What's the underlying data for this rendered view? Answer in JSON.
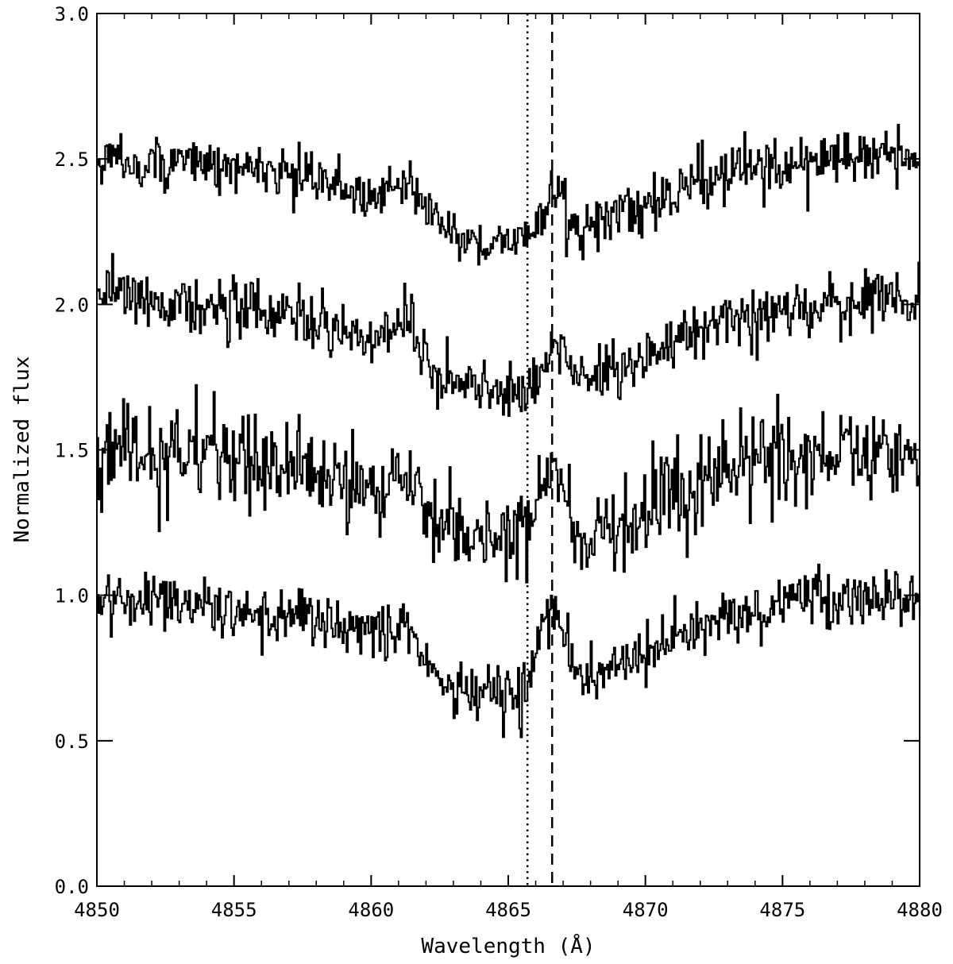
{
  "chart_data": {
    "type": "line",
    "title": "",
    "xlabel": "Wavelength (Å)",
    "ylabel": "Normalized flux",
    "xlim": [
      4850,
      4880
    ],
    "ylim": [
      0.0,
      3.0
    ],
    "x_ticks": [
      4850,
      4855,
      4860,
      4865,
      4870,
      4875,
      4880
    ],
    "x_tick_labels": [
      "4850",
      "4855",
      "4860",
      "4865",
      "4870",
      "4875",
      "4880"
    ],
    "y_ticks": [
      0.0,
      0.5,
      1.0,
      1.5,
      2.0,
      2.5,
      3.0
    ],
    "y_tick_labels": [
      "0.0",
      "0.5",
      "1.0",
      "1.5",
      "2.0",
      "2.5",
      "3.0"
    ],
    "grid": false,
    "legend": "none",
    "line_color": "#000000",
    "reference_lines": [
      {
        "style": "dotted",
        "x": 4865.7
      },
      {
        "style": "dashed",
        "x": 4866.6
      }
    ],
    "series": [
      {
        "offset": 1.5,
        "noise": 0.045,
        "x": [
          4850,
          4852,
          4854,
          4856,
          4858,
          4860,
          4861,
          4861.3,
          4861.8,
          4862.5,
          4863.5,
          4864.5,
          4865.3,
          4865.7,
          4866.1,
          4866.6,
          4867.0,
          4867.5,
          4868.5,
          4870,
          4872,
          4874,
          4876,
          4878,
          4880
        ],
        "y": [
          2.49,
          2.49,
          2.48,
          2.46,
          2.43,
          2.37,
          2.42,
          2.47,
          2.35,
          2.26,
          2.22,
          2.21,
          2.22,
          2.23,
          2.3,
          2.38,
          2.33,
          2.26,
          2.28,
          2.35,
          2.43,
          2.47,
          2.49,
          2.5,
          2.5
        ]
      },
      {
        "offset": 1.0,
        "noise": 0.05,
        "x": [
          4850,
          4852,
          4854,
          4856,
          4858,
          4860,
          4861,
          4861.3,
          4861.8,
          4862.5,
          4863.5,
          4864.5,
          4865.3,
          4865.7,
          4866.1,
          4866.6,
          4867.0,
          4867.5,
          4868.5,
          4870,
          4872,
          4874,
          4876,
          4878,
          4880
        ],
        "y": [
          2.07,
          2.02,
          1.99,
          1.97,
          1.93,
          1.88,
          1.92,
          1.98,
          1.83,
          1.74,
          1.71,
          1.71,
          1.69,
          1.7,
          1.78,
          1.85,
          1.82,
          1.76,
          1.76,
          1.82,
          1.92,
          1.97,
          1.99,
          2.0,
          2.02
        ]
      },
      {
        "offset": 0.5,
        "noise": 0.08,
        "x": [
          4850,
          4852,
          4854,
          4856,
          4858,
          4860,
          4861,
          4861.3,
          4861.8,
          4862.5,
          4863.5,
          4864.5,
          4865.3,
          4865.7,
          4866.1,
          4866.6,
          4867.0,
          4867.5,
          4868.5,
          4870,
          4872,
          4874,
          4876,
          4878,
          4880
        ],
        "y": [
          1.52,
          1.5,
          1.47,
          1.44,
          1.42,
          1.35,
          1.38,
          1.46,
          1.32,
          1.28,
          1.23,
          1.21,
          1.2,
          1.22,
          1.33,
          1.45,
          1.3,
          1.18,
          1.22,
          1.29,
          1.4,
          1.46,
          1.49,
          1.49,
          1.5
        ]
      },
      {
        "offset": 0.0,
        "noise": 0.05,
        "x": [
          4850,
          4852,
          4854,
          4856,
          4858,
          4860,
          4861,
          4861.3,
          4861.8,
          4862.5,
          4863.5,
          4864.5,
          4865.3,
          4865.7,
          4866.1,
          4866.6,
          4867.0,
          4867.5,
          4868.5,
          4870,
          4872,
          4874,
          4876,
          4878,
          4880
        ],
        "y": [
          1.0,
          0.99,
          0.97,
          0.93,
          0.91,
          0.86,
          0.9,
          0.95,
          0.78,
          0.7,
          0.66,
          0.65,
          0.66,
          0.68,
          0.84,
          0.93,
          0.85,
          0.72,
          0.74,
          0.8,
          0.9,
          0.95,
          0.98,
          0.99,
          1.0
        ]
      }
    ]
  }
}
